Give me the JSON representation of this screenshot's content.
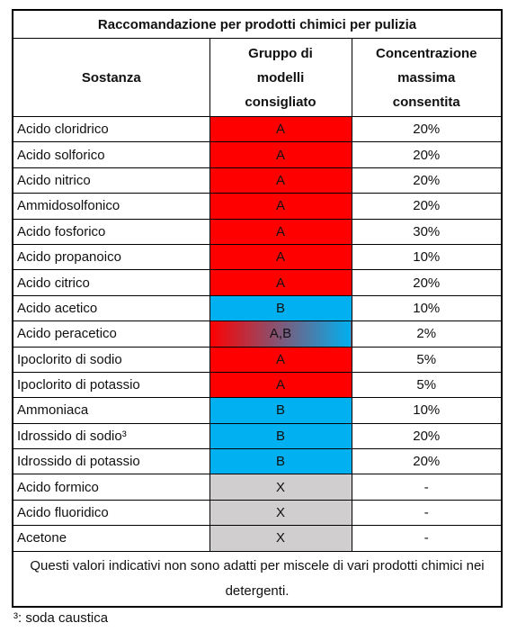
{
  "table": {
    "title": "Raccomandazione per prodotti chimici per pulizia",
    "header": [
      [
        "Sostanza"
      ],
      [
        "Gruppo di",
        "modelli",
        "consigliato"
      ],
      [
        "Concentrazione",
        "massima",
        "consentita"
      ]
    ],
    "rows": [
      {
        "cells": [
          "Acido cloridrico",
          "A",
          "20%"
        ],
        "colors": [
          "#ff0000"
        ]
      },
      {
        "cells": [
          "Acido solforico",
          "A",
          "20%"
        ],
        "colors": [
          "#ff0000"
        ]
      },
      {
        "cells": [
          "Acido nitrico",
          "A",
          "20%"
        ],
        "colors": [
          "#ff0000"
        ]
      },
      {
        "cells": [
          "Ammidosolfonico",
          "A",
          "20%"
        ],
        "colors": [
          "#ff0000"
        ]
      },
      {
        "cells": [
          "Acido fosforico",
          "A",
          "30%"
        ],
        "colors": [
          "#ff0000"
        ]
      },
      {
        "cells": [
          "Acido propanoico",
          "A",
          "10%"
        ],
        "colors": [
          "#ff0000"
        ]
      },
      {
        "cells": [
          "Acido citrico",
          "A",
          "20%"
        ],
        "colors": [
          "#ff0000"
        ]
      },
      {
        "cells": [
          "Acido acetico",
          "B",
          "10%"
        ],
        "colors": [
          "#00b0f0"
        ]
      },
      {
        "cells": [
          "Acido peracetico",
          "A,B",
          "2%"
        ],
        "colors": [
          "#ff0000",
          "#00b0f0"
        ]
      },
      {
        "cells": [
          "Ipoclorito di sodio",
          "A",
          "5%"
        ],
        "colors": [
          "#ff0000"
        ]
      },
      {
        "cells": [
          "Ipoclorito di potassio",
          "A",
          "5%"
        ],
        "colors": [
          "#ff0000"
        ]
      },
      {
        "cells": [
          "Ammoniaca",
          "B",
          "10%"
        ],
        "colors": [
          "#00b0f0"
        ]
      },
      {
        "cells": [
          "Idrossido di sodio³",
          "B",
          "20%"
        ],
        "colors": [
          "#00b0f0"
        ]
      },
      {
        "cells": [
          "Idrossido di potassio",
          "B",
          "20%"
        ],
        "colors": [
          "#00b0f0"
        ]
      },
      {
        "cells": [
          "Acido formico",
          "X",
          "-"
        ],
        "colors": [
          "#d0cece"
        ]
      },
      {
        "cells": [
          "Acido fluoridico",
          "X",
          "-"
        ],
        "colors": [
          "#d0cece"
        ]
      },
      {
        "cells": [
          "Acetone",
          "X",
          "-"
        ],
        "colors": [
          "#d0cece"
        ]
      }
    ],
    "note": "Questi valori indicativi non sono adatti per miscele di vari prodotti chimici nei detergenti.",
    "footnote": "³: soda caustica"
  }
}
